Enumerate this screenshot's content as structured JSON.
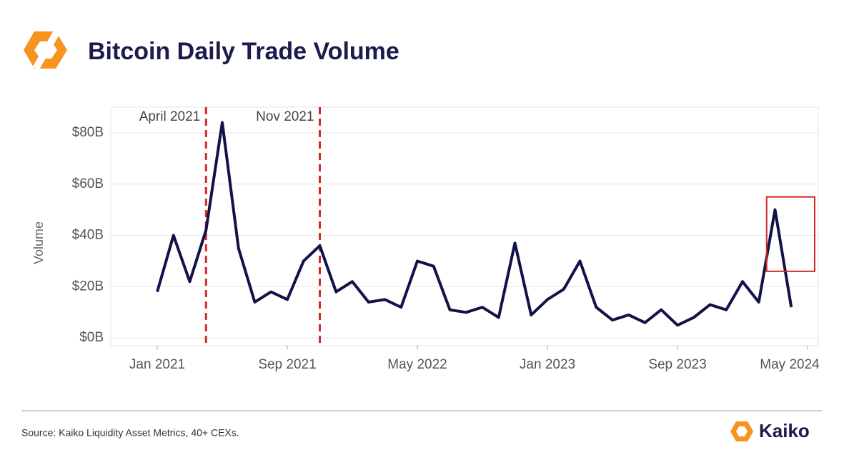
{
  "brand": "Kaiko",
  "chart_data": {
    "type": "line",
    "title": "Bitcoin Daily Trade Volume",
    "y_label": "Volume",
    "source": "Source: Kaiko Liquidity Asset Metrics, 40+ CEXs.",
    "x": [
      "Jan 2021",
      "Feb 2021",
      "Mar 2021",
      "Apr 2021",
      "May 2021",
      "Jun 2021",
      "Jul 2021",
      "Aug 2021",
      "Sep 2021",
      "Oct 2021",
      "Nov 2021",
      "Dec 2021",
      "Jan 2022",
      "Feb 2022",
      "Mar 2022",
      "Apr 2022",
      "May 2022",
      "Jun 2022",
      "Jul 2022",
      "Aug 2022",
      "Sep 2022",
      "Oct 2022",
      "Nov 2022",
      "Dec 2022",
      "Jan 2023",
      "Feb 2023",
      "Mar 2023",
      "Apr 2023",
      "May 2023",
      "Jun 2023",
      "Jul 2023",
      "Aug 2023",
      "Sep 2023",
      "Oct 2023",
      "Nov 2023",
      "Dec 2023",
      "Jan 2024",
      "Feb 2024",
      "Mar 2024",
      "Apr 2024",
      "May 2024"
    ],
    "series": [
      {
        "name": "Volume",
        "color": "#12124a",
        "values": [
          18,
          40,
          22,
          42,
          84,
          35,
          14,
          18,
          15,
          30,
          36,
          18,
          22,
          14,
          15,
          12,
          30,
          28,
          11,
          10,
          12,
          8,
          37,
          9,
          15,
          19,
          30,
          12,
          7,
          9,
          6,
          11,
          5,
          8,
          13,
          11,
          22,
          14,
          50,
          12,
          null
        ]
      }
    ],
    "xticks": [
      "Jan 2021",
      "Sep 2021",
      "May 2022",
      "Jan 2023",
      "Sep 2023",
      "May 2024"
    ],
    "ylim": [
      -3,
      90
    ],
    "yticks": [
      {
        "value": 0,
        "label": "$0B"
      },
      {
        "value": 20,
        "label": "$20B"
      },
      {
        "value": 40,
        "label": "$40B"
      },
      {
        "value": 60,
        "label": "$60B"
      },
      {
        "value": 80,
        "label": "$80B"
      }
    ],
    "grid": true,
    "annotations": [
      {
        "label": "April 2021",
        "x": "Apr 2021",
        "color": "#d62728"
      },
      {
        "label": "Nov 2021",
        "x": "Nov 2021",
        "color": "#d62728"
      }
    ],
    "highlight": {
      "x_range": [
        "Feb 2024",
        "May 2024"
      ],
      "y_range": [
        26,
        55
      ],
      "color": "#d62728"
    }
  }
}
